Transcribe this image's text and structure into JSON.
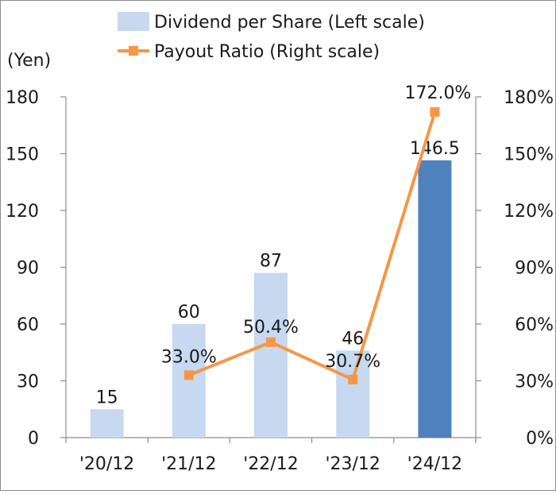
{
  "chart_data": {
    "type": "bar",
    "categories": [
      "'20/12",
      "'21/12",
      "'22/12",
      "'23/12",
      "'24/12"
    ],
    "left_axis": {
      "unit_label": "(Yen)",
      "ylim": [
        0,
        180
      ],
      "ticks": [
        0,
        30,
        60,
        90,
        120,
        150,
        180
      ]
    },
    "right_axis": {
      "ylim": [
        0,
        180
      ],
      "ticks": [
        "0%",
        "30%",
        "60%",
        "90%",
        "120%",
        "150%",
        "180%"
      ]
    },
    "series": [
      {
        "name": "Dividend per Share (Left scale)",
        "kind": "bar",
        "values": [
          15,
          60,
          87,
          46,
          146.5
        ],
        "labels": [
          "15",
          "60",
          "87",
          "46",
          "146.5"
        ],
        "color": "#c6d9f1",
        "highlight_color": "#4f81bd",
        "highlight_index": 4
      },
      {
        "name": "Payout Ratio (Right scale)",
        "kind": "line",
        "values": [
          null,
          33.0,
          50.4,
          30.7,
          172.0
        ],
        "labels": [
          "",
          "33.0%",
          "50.4%",
          "30.7%",
          "172.0%"
        ],
        "color": "#f79646"
      }
    ],
    "legend": "top",
    "grid": false
  }
}
